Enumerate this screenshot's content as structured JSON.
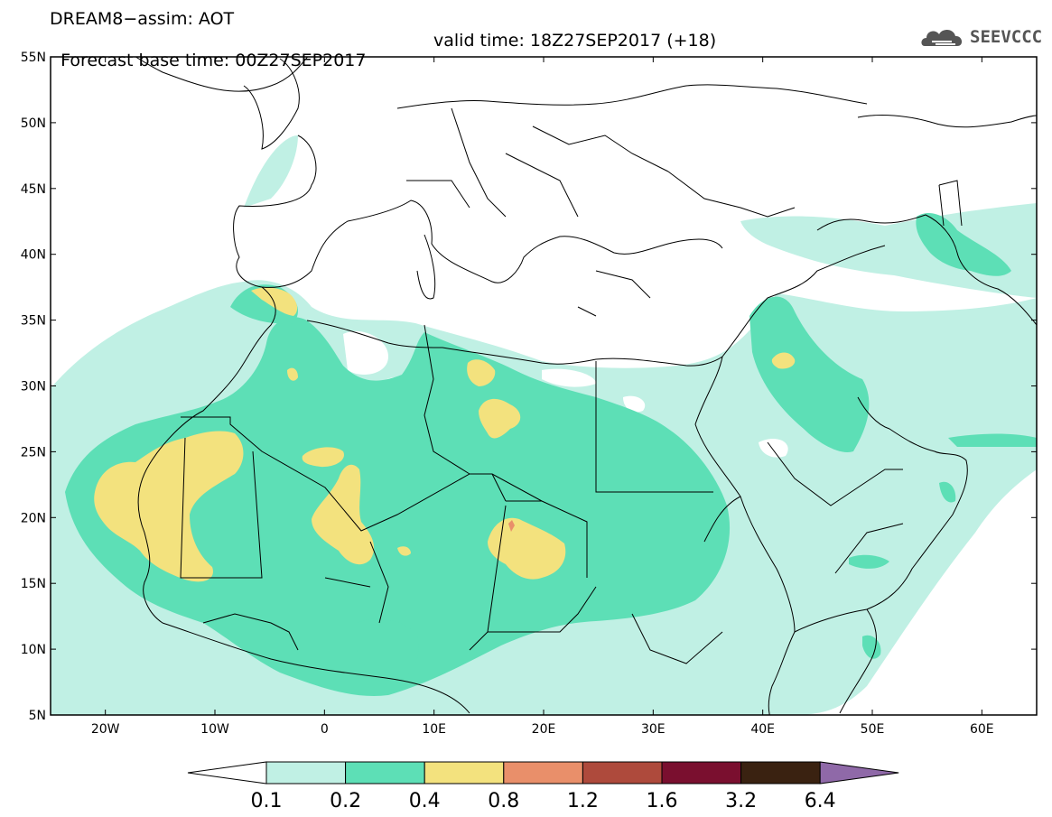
{
  "title": {
    "line1": "DREAM8−assim: AOT",
    "base_time": "Forecast base time: 00Z27SEP2017",
    "valid_time": "valid time: 18Z27SEP2017 (+18)"
  },
  "logo": {
    "text": "SEEVCCC",
    "icon": "cloud-logo-icon"
  },
  "map": {
    "lon_range": [
      -25,
      65
    ],
    "lat_range": [
      5,
      55
    ],
    "lat_labels": [
      "55N",
      "50N",
      "45N",
      "40N",
      "35N",
      "30N",
      "25N",
      "20N",
      "15N",
      "10N",
      "5N"
    ],
    "lon_labels": [
      "20W",
      "10W",
      "0",
      "10E",
      "20E",
      "30E",
      "40E",
      "50E",
      "60E"
    ]
  },
  "colorbar": {
    "labels": [
      "0.1",
      "0.2",
      "0.4",
      "0.8",
      "1.2",
      "1.6",
      "3.2",
      "6.4"
    ],
    "colors": {
      "under": "#ffffff",
      "bins": [
        "#c0f0e4",
        "#5ddfb6",
        "#f3e27e",
        "#e98f6a",
        "#ae4a3c",
        "#7a0f2f",
        "#3a2211"
      ],
      "over": "#8f69a8"
    }
  }
}
